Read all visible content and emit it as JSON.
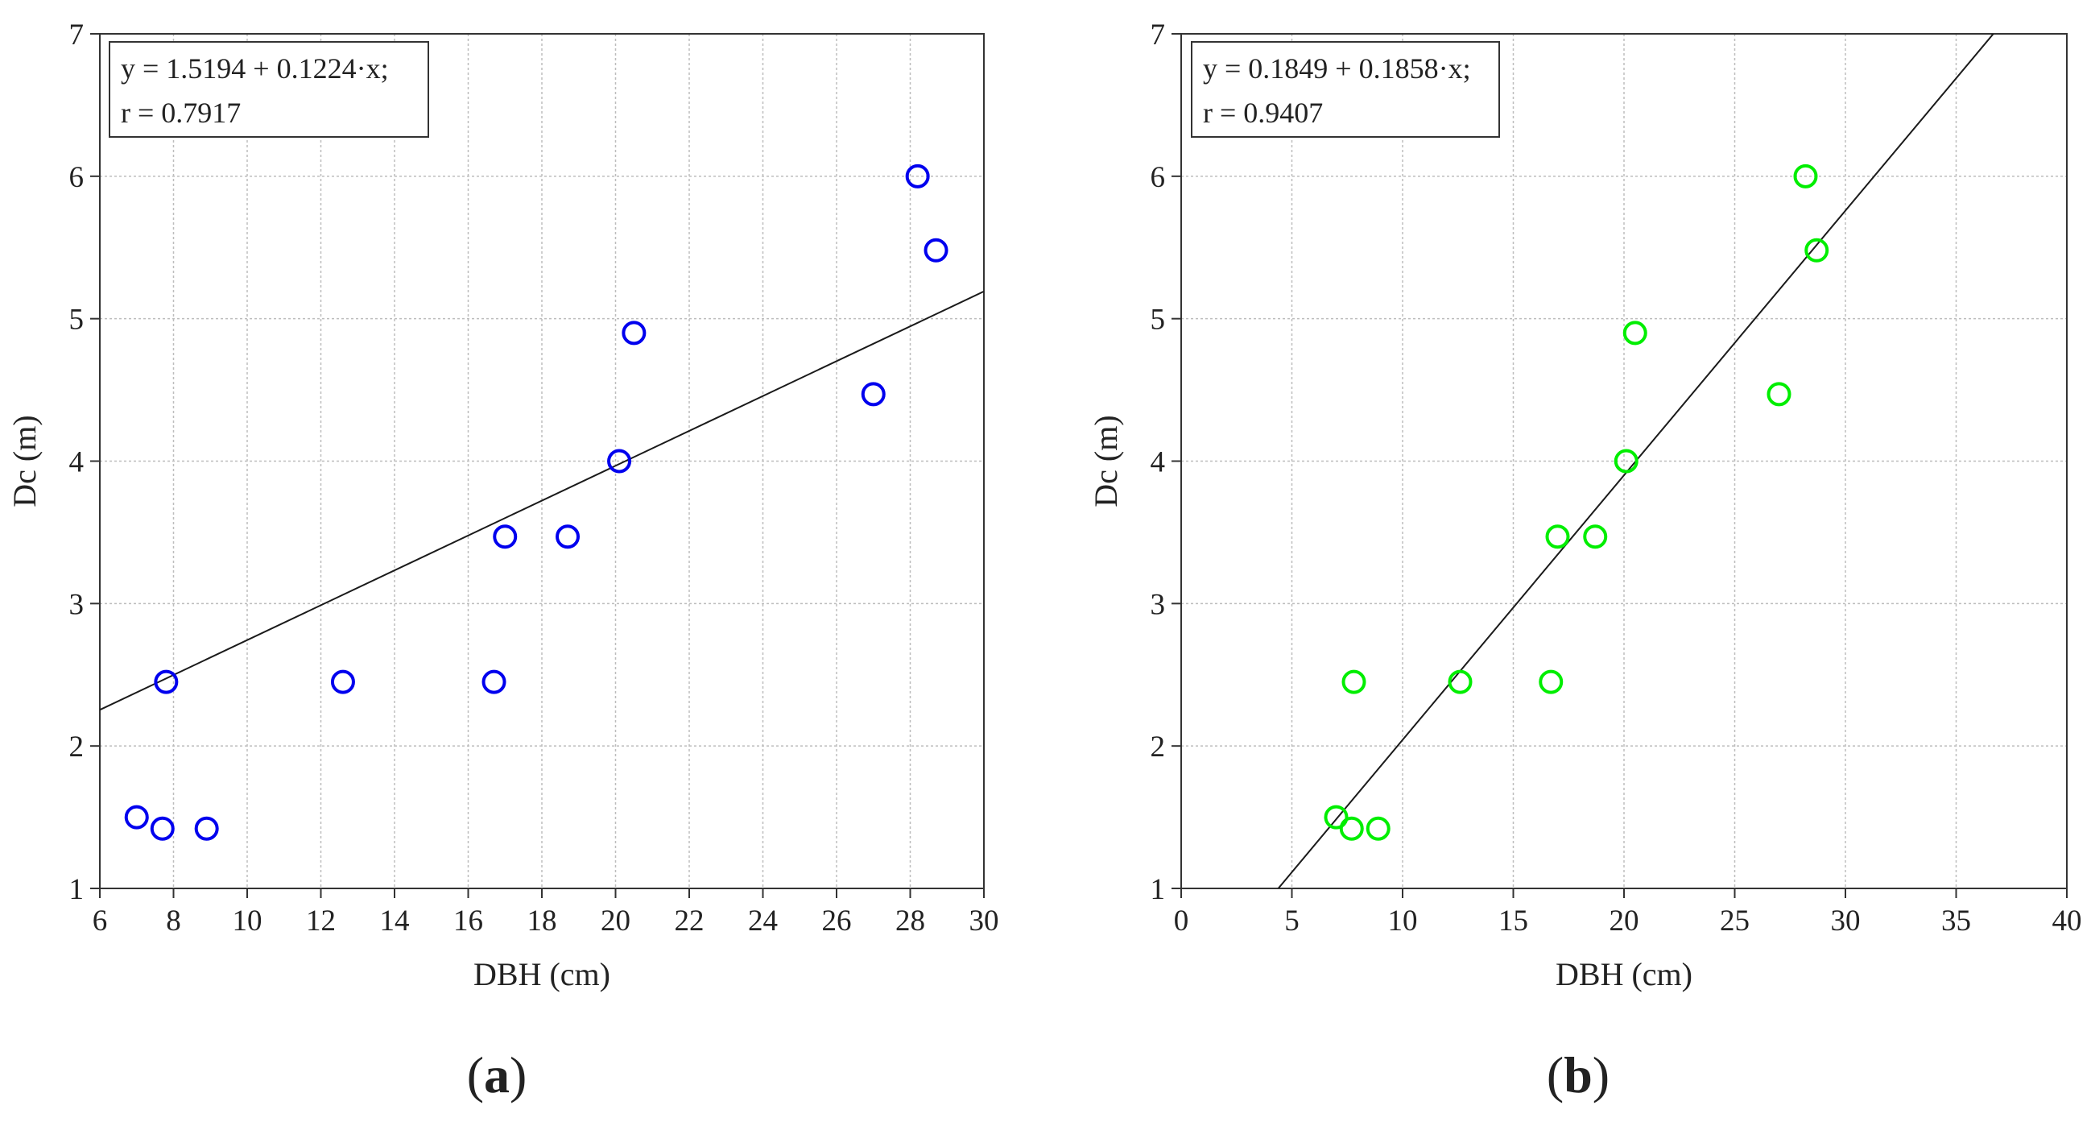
{
  "chart_data": [
    {
      "type": "scatter",
      "panel": "a",
      "marker_color": "#0000ee",
      "xlabel": "DBH (cm)",
      "ylabel": "Dc (m)",
      "xlim": [
        6,
        30
      ],
      "ylim": [
        1,
        7
      ],
      "xticks": [
        6,
        8,
        10,
        12,
        14,
        16,
        18,
        20,
        22,
        24,
        26,
        28,
        30
      ],
      "yticks": [
        1,
        2,
        3,
        4,
        5,
        6,
        7
      ],
      "grid": true,
      "equation": "y = 1.5194 + 0.1224·x;",
      "r_text": "r = 0.7917",
      "legend_position": "top-left",
      "fit": {
        "intercept": 1.5194,
        "slope": 0.1224
      },
      "points": [
        {
          "x": 7.0,
          "y": 1.5
        },
        {
          "x": 7.7,
          "y": 1.42
        },
        {
          "x": 7.8,
          "y": 2.45
        },
        {
          "x": 8.9,
          "y": 1.42
        },
        {
          "x": 12.6,
          "y": 2.45
        },
        {
          "x": 16.7,
          "y": 2.45
        },
        {
          "x": 17.0,
          "y": 3.47
        },
        {
          "x": 18.7,
          "y": 3.47
        },
        {
          "x": 20.1,
          "y": 4.0
        },
        {
          "x": 20.5,
          "y": 4.9
        },
        {
          "x": 27.0,
          "y": 4.47
        },
        {
          "x": 28.2,
          "y": 6.0
        },
        {
          "x": 28.7,
          "y": 5.48
        }
      ],
      "caption": {
        "open": "(",
        "letter": "a",
        "close": ")"
      }
    },
    {
      "type": "scatter",
      "panel": "b",
      "marker_color": "#00ee00",
      "xlabel": "DBH (cm)",
      "ylabel": "Dc (m)",
      "xlim": [
        0,
        40
      ],
      "ylim": [
        1,
        7
      ],
      "xticks": [
        0,
        5,
        10,
        15,
        20,
        25,
        30,
        35,
        40
      ],
      "yticks": [
        1,
        2,
        3,
        4,
        5,
        6,
        7
      ],
      "grid": true,
      "equation": "y = 0.1849 + 0.1858·x;",
      "r_text": "r = 0.9407",
      "legend_position": "top-left",
      "fit": {
        "intercept": 0.1849,
        "slope": 0.1858
      },
      "points": [
        {
          "x": 7.0,
          "y": 1.5
        },
        {
          "x": 7.7,
          "y": 1.42
        },
        {
          "x": 7.8,
          "y": 2.45
        },
        {
          "x": 8.9,
          "y": 1.42
        },
        {
          "x": 12.6,
          "y": 2.45
        },
        {
          "x": 16.7,
          "y": 2.45
        },
        {
          "x": 17.0,
          "y": 3.47
        },
        {
          "x": 18.7,
          "y": 3.47
        },
        {
          "x": 20.1,
          "y": 4.0
        },
        {
          "x": 20.5,
          "y": 4.9
        },
        {
          "x": 27.0,
          "y": 4.47
        },
        {
          "x": 28.2,
          "y": 6.0
        },
        {
          "x": 28.7,
          "y": 5.48
        }
      ],
      "caption": {
        "open": "(",
        "letter": "b",
        "close": ")"
      }
    }
  ]
}
